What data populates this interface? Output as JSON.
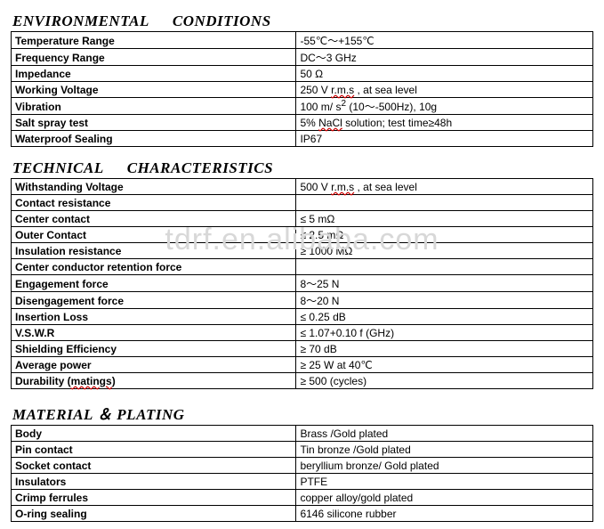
{
  "sections": {
    "env": {
      "title_a": "ENVIRONMENTAL",
      "title_b": "CONDITIONS",
      "rows": [
        {
          "label": "Temperature Range",
          "value": "-55℃～+155℃"
        },
        {
          "label": "Frequency Range",
          "value": "DC～3 GHz"
        },
        {
          "label": "Impedance",
          "value": "50 Ω"
        },
        {
          "label": "Working Voltage",
          "value_html": "250 V   <span class='thin-underline'>r.m.s</span> , at sea level"
        },
        {
          "label": "Vibration",
          "value_html": "100 m/ s<sup>2</sup>  (10～-500Hz),   10g"
        },
        {
          "label": "Salt spray test",
          "value_html": "5% <span class='thin-underline'>NaCl</span> solution; test time≥48h"
        },
        {
          "label": "Waterproof Sealing",
          "value": "IP67"
        }
      ]
    },
    "tech": {
      "title_a": "TECHNICAL",
      "title_b": "CHARACTERISTICS",
      "rows": [
        {
          "label": "Withstanding Voltage",
          "value_html": "500 V   <span class='thin-underline'>r.m.s</span> , at sea level"
        },
        {
          "label": "Contact resistance",
          "value": ""
        },
        {
          "label": "Center contact",
          "value": "≤ 5    mΩ"
        },
        {
          "label": "Outer Contact",
          "value": "≤ 2.5  mΩ"
        },
        {
          "label": "Insulation resistance",
          "value": "≥ 1000 MΩ"
        },
        {
          "label": "Center conductor retention force",
          "value": ""
        },
        {
          "label": "Engagement force",
          "value": "8～25 N"
        },
        {
          "label": "Disengagement force",
          "value": "8～20 N"
        },
        {
          "label": "Insertion Loss",
          "value": "≤ 0.25 dB"
        },
        {
          "label": "V.S.W.R",
          "value": "≤ 1.07+0.10 f (GHz)"
        },
        {
          "label": "Shielding Efficiency",
          "value": "≥ 70 dB"
        },
        {
          "label": "Average power",
          "value": "≥ 25 W        at   40℃"
        },
        {
          "label_html": "Durability   (<span class='thin-underline'>matings</span>)",
          "value": "≥ 500  (cycles)"
        }
      ]
    },
    "mat": {
      "title_a": "MATERIAL",
      "title_amp": "＆",
      "title_b": "PLATING",
      "rows": [
        {
          "label": "Body",
          "value": "Brass /Gold plated"
        },
        {
          "label": "Pin contact",
          "value": "Tin bronze /Gold plated"
        },
        {
          "label": "Socket contact",
          "value": "beryllium bronze/ Gold plated"
        },
        {
          "label": "Insulators",
          "value": "PTFE"
        },
        {
          "label": "Crimp ferrules",
          "value": "copper alloy/gold plated"
        },
        {
          "label": "O-ring sealing",
          "value": "6146 silicone rubber"
        }
      ]
    }
  },
  "watermark": "tdrf.en.alibaba.com"
}
